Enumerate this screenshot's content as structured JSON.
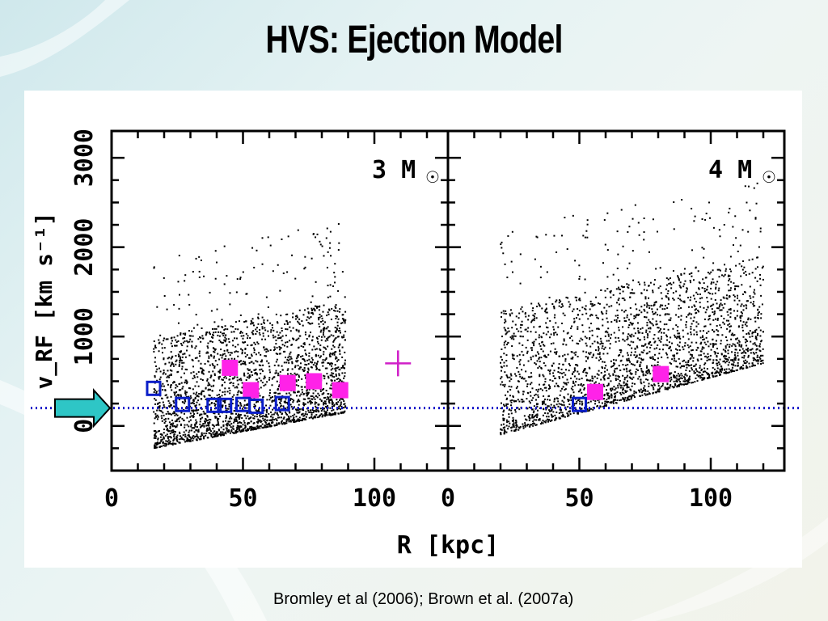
{
  "slide": {
    "title": "HVS: Ejection Model",
    "citation": "Bromley et al (2006); Brown et al. (2007a)"
  },
  "colors": {
    "simulated_points": "#000000",
    "hvs_filled": "#ff22e8",
    "hvs_open": "#0a1ec8",
    "escape_line": "#1010c8",
    "arrow_fill": "#2ec6c6",
    "unbound_marker": "#d020c8"
  },
  "chart_data": {
    "type": "scatter",
    "xlabel": "R [kpc]",
    "ylabel": "v_RF [km s⁻¹]",
    "xlim": [
      0,
      128
    ],
    "ylim": [
      -500,
      3300
    ],
    "x_ticks": [
      0,
      50,
      100
    ],
    "y_ticks": [
      0,
      1000,
      2000,
      3000
    ],
    "reference_line": {
      "y": 200,
      "style": "dotted"
    },
    "panels": [
      {
        "label": "3 M",
        "label_symbol": "☉",
        "simulated_distribution": {
          "x_range": [
            16,
            89
          ],
          "v_lower_at_xmin": -250,
          "v_lower_at_xmax": 150,
          "v_upper_at_xmin": 1000,
          "v_upper_at_xmax": 1400,
          "count": 2600
        },
        "series": [
          {
            "name": "",
            "marker": "filled-square",
            "points": [
              [
                45,
                650
              ],
              [
                53,
                400
              ],
              [
                67,
                480
              ],
              [
                77,
                500
              ],
              [
                87,
                400
              ]
            ]
          },
          {
            "name": "",
            "marker": "open-square",
            "points": [
              [
                16,
                420
              ],
              [
                27,
                240
              ],
              [
                39,
                230
              ],
              [
                43,
                230
              ],
              [
                50,
                240
              ],
              [
                55,
                220
              ],
              [
                65,
                250
              ]
            ]
          },
          {
            "name": "",
            "marker": "plus",
            "points": [
              [
                109,
                700
              ]
            ]
          }
        ]
      },
      {
        "label": "4 M",
        "label_symbol": "☉",
        "simulated_distribution": {
          "x_range": [
            20,
            120
          ],
          "v_lower_at_xmin": -100,
          "v_lower_at_xmax": 700,
          "v_upper_at_xmin": 1300,
          "v_upper_at_xmax": 1900,
          "count": 2600
        },
        "series": [
          {
            "name": "",
            "marker": "filled-square",
            "points": [
              [
                56,
                380
              ],
              [
                81,
                580
              ]
            ]
          },
          {
            "name": "",
            "marker": "open-square",
            "points": [
              [
                50,
                240
              ]
            ]
          }
        ]
      }
    ]
  }
}
